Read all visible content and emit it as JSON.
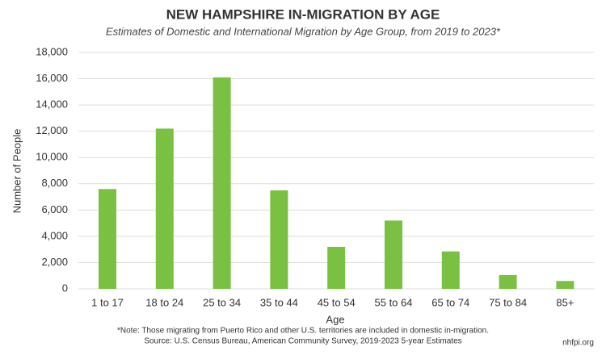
{
  "chart_data": {
    "type": "bar",
    "title": "NEW HAMPSHIRE IN-MIGRATION BY AGE",
    "subtitle": "Estimates of Domestic and International Migration by Age Group, from 2019 to 2023*",
    "x_label": "Age",
    "y_label": "Number of People",
    "categories": [
      "1 to 17",
      "18 to 24",
      "25 to 34",
      "35 to 44",
      "45 to 54",
      "55 to 64",
      "65 to 74",
      "75 to 84",
      "85+"
    ],
    "values": [
      7600,
      12200,
      16100,
      7500,
      3200,
      5200,
      2850,
      1050,
      600
    ],
    "color": "#7ac143",
    "ylim": [
      0,
      18000
    ],
    "yticks": [
      0,
      {
        "value": 2000,
        "label": "2,000"
      },
      {
        "value": 4000,
        "label": "4,000"
      },
      {
        "value": 6000,
        "label": "6,000"
      },
      {
        "value": 8000,
        "label": "8,000"
      },
      {
        "value": 10000,
        "label": "10,000"
      },
      {
        "value": 12000,
        "label": "12,000"
      },
      {
        "value": 14000,
        "label": "14,000"
      },
      {
        "value": 16000,
        "label": "16,000"
      },
      {
        "value": 18000,
        "label": "18,000"
      }
    ],
    "grid": true,
    "notes": [
      "*Note: Those migrating from Puerto Rico and other U.S. territories are included in domestic in-migration.",
      "Source: U.S. Census Bureau, American Community Survey, 2019-2023 5-year Estimates"
    ],
    "credit": "nhfpi.org"
  }
}
